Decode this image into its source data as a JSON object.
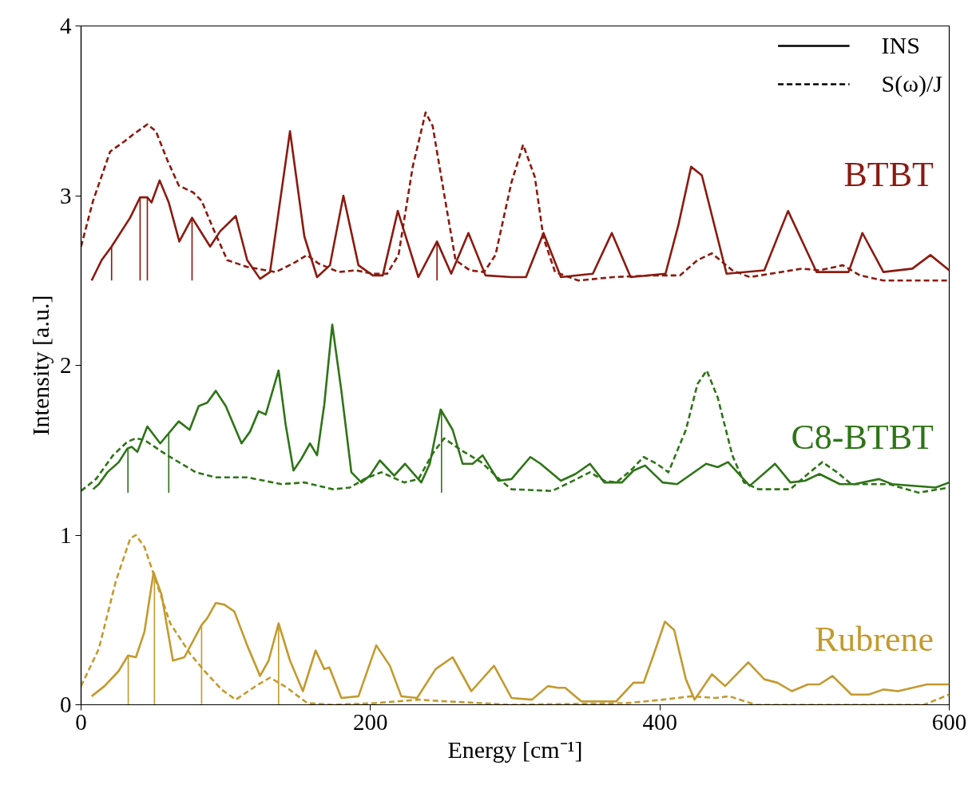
{
  "chart_data": {
    "type": "line",
    "xlabel": "Energy [cm⁻¹]",
    "ylabel": "Intensity [a.u.]",
    "xlim": [
      0,
      600
    ],
    "ylim": [
      0,
      4
    ],
    "xticks": [
      0,
      200,
      400,
      600
    ],
    "yticks": [
      0,
      1,
      2,
      3,
      4
    ],
    "legend": "top right",
    "series": [
      {
        "name": "BTBT",
        "color": "#8b1a10",
        "line_style": "solid",
        "x": [
          7.3,
          14.2,
          21.1,
          33.9,
          40.8,
          45.8,
          48.7,
          54.3,
          60.6,
          67.9,
          76.7,
          83.3,
          89.2,
          96.1,
          106.9,
          114.8,
          123.7,
          130.6,
          144.4,
          154.3,
          163.1,
          172,
          181.3,
          191.7,
          201.6,
          208.5,
          218.9,
          233.1,
          246,
          255.8,
          267.7,
          279.5,
          297.5,
          307.5,
          319.6,
          331.6,
          353.7,
          366.8,
          379.8,
          403.9,
          412.9,
          421.6,
          429,
          446.1,
          472.2,
          488.6,
          508.3,
          530.4,
          540,
          554.5,
          574.5,
          587,
          600
        ],
        "values": [
          2.5,
          2.62,
          2.7,
          2.87,
          2.99,
          2.99,
          2.96,
          3.09,
          2.96,
          2.73,
          2.87,
          2.78,
          2.7,
          2.79,
          2.88,
          2.62,
          2.51,
          2.55,
          3.38,
          2.76,
          2.52,
          2.59,
          3.0,
          2.59,
          2.53,
          2.53,
          2.91,
          2.52,
          2.73,
          2.54,
          2.78,
          2.53,
          2.52,
          2.52,
          2.78,
          2.52,
          2.54,
          2.78,
          2.52,
          2.54,
          2.83,
          3.17,
          3.12,
          2.54,
          2.56,
          2.91,
          2.55,
          2.55,
          2.78,
          2.55,
          2.57,
          2.65,
          2.56
        ]
      },
      {
        "color": "#8b1a10",
        "line_style": "dashed",
        "x": [
          0,
          8.3,
          20.1,
          30,
          35.9,
          45.8,
          51.7,
          59.6,
          67.5,
          77.3,
          83.3,
          91.1,
          101,
          114.8,
          134.5,
          146.4,
          156.2,
          164.1,
          178,
          189.8,
          201.6,
          211.5,
          219.4,
          229.2,
          238.1,
          243,
          250.9,
          258.8,
          268.7,
          278.5,
          286.4,
          297.5,
          305.5,
          313.6,
          319.6,
          327.6,
          343.7,
          367.8,
          393.9,
          413.9,
          426,
          436,
          450.1,
          462.1,
          498.3,
          510.3,
          526.4,
          538.4,
          554.5,
          600
        ],
        "values": [
          2.7,
          2.97,
          3.26,
          3.32,
          3.36,
          3.42,
          3.38,
          3.21,
          3.06,
          3.02,
          2.97,
          2.81,
          2.62,
          2.58,
          2.55,
          2.6,
          2.65,
          2.6,
          2.55,
          2.56,
          2.54,
          2.54,
          2.65,
          3.17,
          3.49,
          3.41,
          3.01,
          2.62,
          2.56,
          2.55,
          2.65,
          3.08,
          3.3,
          3.11,
          2.75,
          2.55,
          2.5,
          2.52,
          2.53,
          2.53,
          2.62,
          2.66,
          2.56,
          2.52,
          2.57,
          2.56,
          2.59,
          2.53,
          2.5,
          2.5
        ]
      },
      {
        "type": "bar",
        "color": "#8b1a10",
        "x": [
          21.1,
          40.8,
          45.8,
          76.7,
          246
        ],
        "base": [
          2.5,
          2.5,
          2.5,
          2.5,
          2.5
        ],
        "values": [
          0.2,
          0.49,
          0.49,
          0.37,
          0.23
        ]
      },
      {
        "name": "C8-BTBT",
        "color": "#2e7417",
        "line_style": "solid",
        "x": [
          8.3,
          12.3,
          18.2,
          26.1,
          32,
          35,
          38.9,
          45.8,
          54.7,
          60.6,
          67.5,
          75,
          81.3,
          87.2,
          93.1,
          100,
          110.9,
          116.8,
          122.7,
          127.6,
          136.5,
          141.4,
          146.8,
          152.3,
          158.2,
          163.1,
          168.1,
          173.6,
          179.9,
          186.8,
          193.7,
          199.6,
          206.5,
          216.4,
          223.9,
          235.1,
          241,
          248.5,
          256.8,
          263.7,
          270.6,
          277.5,
          288.4,
          297.5,
          310.5,
          317.6,
          331.6,
          341.7,
          351.7,
          361.7,
          373.8,
          381.8,
          389.8,
          401.9,
          411.9,
          432,
          440,
          447.1,
          462.1,
          479.6,
          490.2,
          500.3,
          510.3,
          524.4,
          534.4,
          551.5,
          560.5,
          590.6,
          600
        ],
        "values": [
          1.27,
          1.3,
          1.37,
          1.43,
          1.51,
          1.52,
          1.49,
          1.64,
          1.54,
          1.6,
          1.67,
          1.62,
          1.76,
          1.78,
          1.85,
          1.76,
          1.54,
          1.61,
          1.73,
          1.71,
          1.97,
          1.65,
          1.38,
          1.45,
          1.54,
          1.47,
          1.77,
          2.24,
          1.85,
          1.37,
          1.31,
          1.35,
          1.44,
          1.35,
          1.42,
          1.31,
          1.42,
          1.74,
          1.62,
          1.42,
          1.42,
          1.47,
          1.32,
          1.33,
          1.46,
          1.42,
          1.32,
          1.36,
          1.42,
          1.31,
          1.31,
          1.38,
          1.41,
          1.31,
          1.3,
          1.42,
          1.4,
          1.43,
          1.29,
          1.42,
          1.31,
          1.32,
          1.36,
          1.3,
          1.3,
          1.33,
          1.3,
          1.28,
          1.31
        ]
      },
      {
        "color": "#2e7417",
        "line_style": "dashed",
        "x": [
          0,
          10.3,
          22.1,
          32,
          37.9,
          43.8,
          59.6,
          79.3,
          93.1,
          114.8,
          138.5,
          154.3,
          174,
          185.8,
          195.7,
          207.5,
          223.3,
          233.2,
          243,
          250.9,
          262.7,
          276.5,
          290.3,
          297.5,
          325.6,
          337.7,
          351.7,
          361.7,
          369.8,
          379.8,
          388.8,
          397.9,
          405.9,
          418,
          426,
          432.4,
          440,
          450.1,
          458.1,
          468.1,
          490.2,
          502.3,
          512.3,
          522.4,
          532.4,
          558.5,
          578.6,
          600
        ],
        "values": [
          1.26,
          1.33,
          1.47,
          1.55,
          1.57,
          1.56,
          1.47,
          1.37,
          1.34,
          1.34,
          1.3,
          1.31,
          1.27,
          1.28,
          1.33,
          1.37,
          1.31,
          1.33,
          1.48,
          1.57,
          1.5,
          1.43,
          1.32,
          1.27,
          1.26,
          1.31,
          1.37,
          1.32,
          1.31,
          1.38,
          1.46,
          1.42,
          1.37,
          1.62,
          1.89,
          1.97,
          1.81,
          1.47,
          1.31,
          1.27,
          1.27,
          1.36,
          1.43,
          1.37,
          1.3,
          1.3,
          1.25,
          1.28
        ]
      },
      {
        "type": "bar",
        "color": "#2e7417",
        "x": [
          32.4,
          60.6,
          249.1
        ],
        "base": [
          1.25,
          1.25,
          1.25
        ],
        "values": [
          0.26,
          0.35,
          0.49
        ]
      },
      {
        "name": "Rubrene",
        "color": "#c49a2e",
        "line_style": "solid",
        "x": [
          7.3,
          16.2,
          26.1,
          32.4,
          37.9,
          43.8,
          50.1,
          55.6,
          63.5,
          71.4,
          83.3,
          87.2,
          93.1,
          99,
          105.9,
          114.8,
          123.7,
          129.6,
          136.5,
          144.4,
          153.3,
          162.1,
          168.1,
          171.6,
          179.9,
          191.7,
          204,
          213.4,
          221.3,
          232.2,
          245,
          256.8,
          269.7,
          285.4,
          297.5,
          311.6,
          322.6,
          329.6,
          334.6,
          345.7,
          369.8,
          381.8,
          388.8,
          395.9,
          403.5,
          409.9,
          418,
          424,
          436,
          445.1,
          461.1,
          472.2,
          481.2,
          491.2,
          502.3,
          510.3,
          519.3,
          532.4,
          544.4,
          554.5,
          564.5,
          584.6,
          600
        ],
        "values": [
          0.05,
          0.11,
          0.2,
          0.29,
          0.28,
          0.43,
          0.78,
          0.65,
          0.26,
          0.28,
          0.47,
          0.51,
          0.6,
          0.59,
          0.55,
          0.35,
          0.17,
          0.26,
          0.48,
          0.26,
          0.08,
          0.32,
          0.21,
          0.22,
          0.04,
          0.05,
          0.35,
          0.23,
          0.05,
          0.04,
          0.21,
          0.28,
          0.08,
          0.23,
          0.04,
          0.03,
          0.11,
          0.1,
          0.1,
          0.02,
          0.02,
          0.13,
          0.13,
          0.3,
          0.49,
          0.44,
          0.15,
          0.03,
          0.18,
          0.11,
          0.25,
          0.15,
          0.13,
          0.08,
          0.12,
          0.12,
          0.17,
          0.06,
          0.06,
          0.09,
          0.08,
          0.12,
          0.12
        ]
      },
      {
        "color": "#c49a2e",
        "line_style": "dashed",
        "x": [
          0,
          12.3,
          24.1,
          34,
          37.9,
          43.8,
          53.7,
          61.6,
          75.4,
          85.2,
          97.1,
          106.9,
          120.7,
          130.6,
          142.4,
          156.2,
          174,
          203.6,
          233.2,
          252.9,
          297.5,
          377.8,
          401.9,
          422,
          438,
          448.1,
          466.1,
          498.3,
          582.6,
          600
        ],
        "values": [
          0.11,
          0.33,
          0.73,
          0.98,
          1.0,
          0.93,
          0.68,
          0.48,
          0.3,
          0.2,
          0.09,
          0.03,
          0.11,
          0.16,
          0.1,
          0.01,
          0.0,
          0.01,
          0.03,
          0.02,
          0.0,
          0.01,
          0.03,
          0.05,
          0.04,
          0.05,
          0.0,
          0.0,
          0.0,
          0.06
        ]
      },
      {
        "type": "bar",
        "color": "#c49a2e",
        "x": [
          32.6,
          50.7,
          83.3,
          136.5
        ],
        "base": [
          0,
          0,
          0,
          0
        ],
        "values": [
          0.29,
          0.78,
          0.47,
          0.48
        ]
      },
      {
        "name": "INS",
        "color": "#000000",
        "line_style": "solid"
      },
      {
        "name": "S(ω)/J",
        "color": "#000000",
        "line_style": "dashed"
      }
    ]
  }
}
